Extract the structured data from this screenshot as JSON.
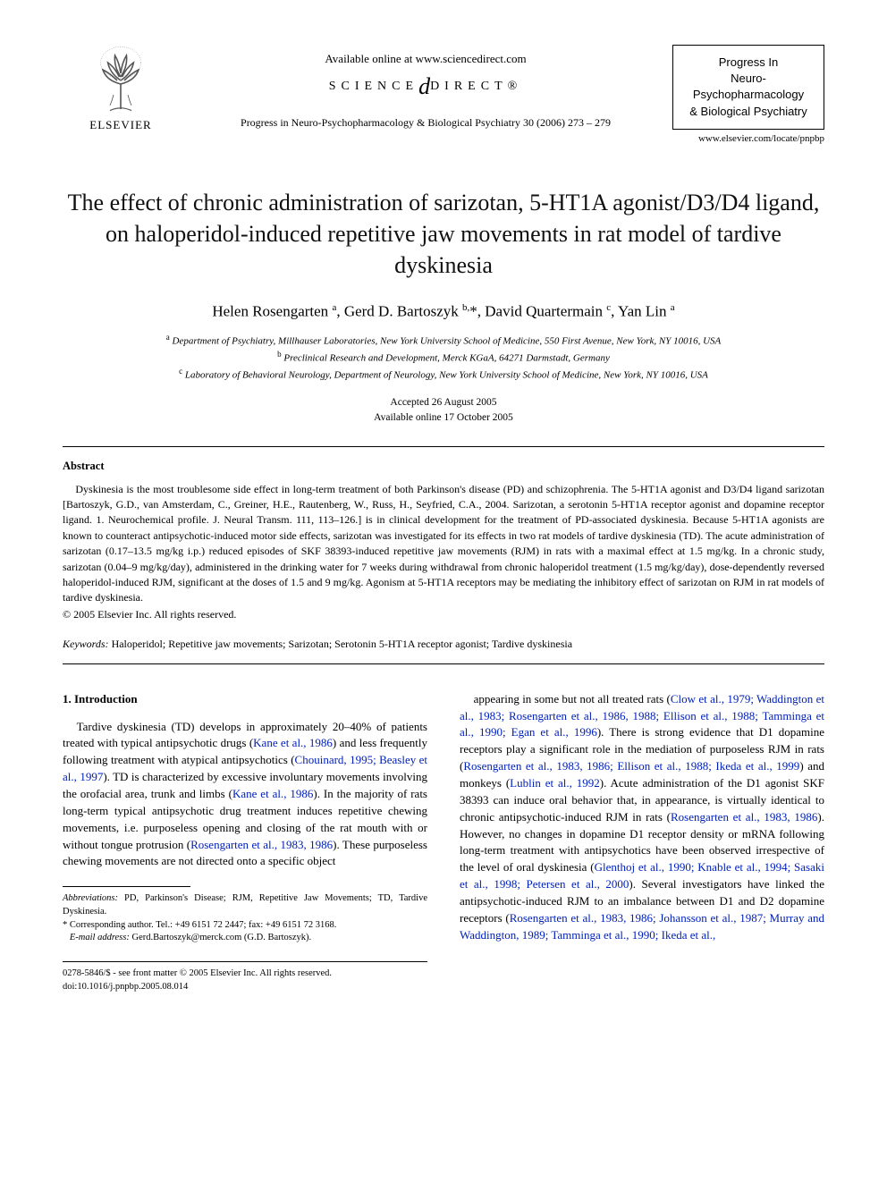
{
  "header": {
    "elsevier_label": "ELSEVIER",
    "available_online": "Available online at www.sciencedirect.com",
    "sd_left": "SCIENCE",
    "sd_right": "DIRECT®",
    "journal_ref": "Progress in Neuro-Psychopharmacology & Biological Psychiatry 30 (2006) 273 – 279",
    "journal_box_l1": "Progress In",
    "journal_box_l2": "Neuro-Psychopharmacology",
    "journal_box_l3": "& Biological Psychiatry",
    "journal_url": "www.elsevier.com/locate/pnpbp"
  },
  "title": "The effect of chronic administration of sarizotan, 5-HT1A agonist/D3/D4 ligand, on haloperidol-induced repetitive jaw movements in rat model of tardive dyskinesia",
  "authors_html": "Helen Rosengarten <sup>a</sup>, Gerd D. Bartoszyk <sup>b,</sup>*, David Quartermain <sup>c</sup>, Yan Lin <sup>a</sup>",
  "affiliations": {
    "a": "Department of Psychiatry, Millhauser Laboratories, New York University School of Medicine, 550 First Avenue, New York, NY 10016, USA",
    "b": "Preclinical Research and Development, Merck KGaA, 64271 Darmstadt, Germany",
    "c": "Laboratory of Behavioral Neurology, Department of Neurology, New York University School of Medicine, New York, NY 10016, USA"
  },
  "dates": {
    "accepted": "Accepted 26 August 2005",
    "online": "Available online 17 October 2005"
  },
  "abstract_head": "Abstract",
  "abstract": "Dyskinesia is the most troublesome side effect in long-term treatment of both Parkinson's disease (PD) and schizophrenia. The 5-HT1A agonist and D3/D4 ligand sarizotan [Bartoszyk, G.D., van Amsterdam, C., Greiner, H.E., Rautenberg, W., Russ, H., Seyfried, C.A., 2004. Sarizotan, a serotonin 5-HT1A receptor agonist and dopamine receptor ligand. 1. Neurochemical profile. J. Neural Transm. 111, 113–126.] is in clinical development for the treatment of PD-associated dyskinesia. Because 5-HT1A agonists are known to counteract antipsychotic-induced motor side effects, sarizotan was investigated for its effects in two rat models of tardive dyskinesia (TD). The acute administration of sarizotan (0.17–13.5 mg/kg i.p.) reduced episodes of SKF 38393-induced repetitive jaw movements (RJM) in rats with a maximal effect at 1.5 mg/kg. In a chronic study, sarizotan (0.04–9 mg/kg/day), administered in the drinking water for 7 weeks during withdrawal from chronic haloperidol treatment (1.5 mg/kg/day), dose-dependently reversed haloperidol-induced RJM, significant at the doses of 1.5 and 9 mg/kg. Agonism at 5-HT1A receptors may be mediating the inhibitory effect of sarizotan on RJM in rat models of tardive dyskinesia.",
  "copyright": "© 2005 Elsevier Inc. All rights reserved.",
  "keywords_label": "Keywords:",
  "keywords": "Haloperidol; Repetitive jaw movements; Sarizotan; Serotonin 5-HT1A receptor agonist; Tardive dyskinesia",
  "section1_head": "1. Introduction",
  "col1_para": "Tardive dyskinesia (TD) develops in approximately 20–40% of patients treated with typical antipsychotic drugs (<span class=\"cite\">Kane et al., 1986</span>) and less frequently following treatment with atypical antipsychotics (<span class=\"cite\">Chouinard, 1995; Beasley et al., 1997</span>). TD is characterized by excessive involuntary movements involving the orofacial area, trunk and limbs (<span class=\"cite\">Kane et al., 1986</span>). In the majority of rats long-term typical antipsychotic drug treatment induces repetitive chewing movements, i.e. purposeless opening and closing of the rat mouth with or without tongue protrusion (<span class=\"cite\">Rosengarten et al., 1983, 1986</span>). These purposeless chewing movements are not directed onto a specific object",
  "col2_para": "appearing in some but not all treated rats (<span class=\"cite\">Clow et al., 1979; Waddington et al., 1983; Rosengarten et al., 1986, 1988; Ellison et al., 1988; Tamminga et al., 1990; Egan et al., 1996</span>). There is strong evidence that D1 dopamine receptors play a significant role in the mediation of purposeless RJM in rats (<span class=\"cite\">Rosengarten et al., 1983, 1986; Ellison et al., 1988; Ikeda et al., 1999</span>) and monkeys (<span class=\"cite\">Lublin et al., 1992</span>). Acute administration of the D1 agonist SKF 38393 can induce oral behavior that, in appearance, is virtually identical to chronic antipsychotic-induced RJM in rats (<span class=\"cite\">Rosengarten et al., 1983, 1986</span>). However, no changes in dopamine D1 receptor density or mRNA following long-term treatment with antipsychotics have been observed irrespective of the level of oral dyskinesia (<span class=\"cite\">Glenthoj et al., 1990; Knable et al., 1994; Sasaki et al., 1998; Petersen et al., 2000</span>). Several investigators have linked the antipsychotic-induced RJM to an imbalance between D1 and D2 dopamine receptors (<span class=\"cite\">Rosengarten et al., 1983, 1986; Johansson et al., 1987; Murray and Waddington, 1989; Tamminga et al., 1990; Ikeda et al.,</span>",
  "footnotes": {
    "abbrev_label": "Abbreviations:",
    "abbrev": "PD, Parkinson's Disease; RJM, Repetitive Jaw Movements; TD, Tardive Dyskinesia.",
    "corr": "* Corresponding author. Tel.: +49 6151 72 2447; fax: +49 6151 72 3168.",
    "email_label": "E-mail address:",
    "email": "Gerd.Bartoszyk@merck.com (G.D. Bartoszyk)."
  },
  "bottom": {
    "front_matter": "0278-5846/$ - see front matter © 2005 Elsevier Inc. All rights reserved.",
    "doi": "doi:10.1016/j.pnpbp.2005.08.014"
  },
  "colors": {
    "citation": "#0020bb",
    "text": "#000000",
    "background": "#ffffff"
  }
}
